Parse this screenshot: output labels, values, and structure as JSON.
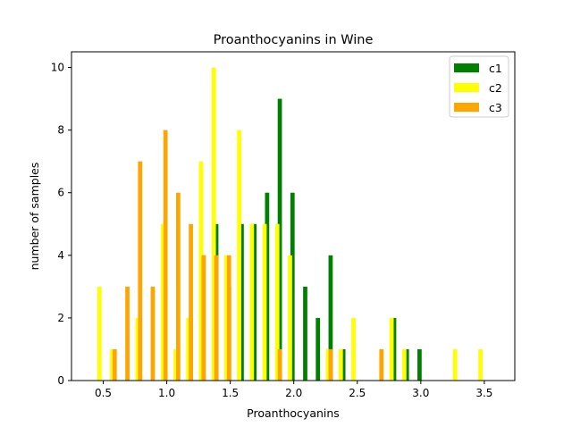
{
  "chart_data": {
    "type": "bar",
    "title": "Proanthocyanins in Wine",
    "xlabel": "Proanthocyanins",
    "ylabel": "number of samples",
    "xlim": [
      0.25,
      3.74
    ],
    "ylim": [
      0,
      10.5
    ],
    "xticks": [
      "0.5",
      "1.0",
      "1.5",
      "2.0",
      "2.5",
      "3.0",
      "3.5"
    ],
    "xtick_values": [
      0.5,
      1.0,
      1.5,
      2.0,
      2.5,
      3.0,
      3.5
    ],
    "yticks": [
      "0",
      "2",
      "4",
      "6",
      "8",
      "10"
    ],
    "ytick_values": [
      0,
      2,
      4,
      6,
      8,
      10
    ],
    "grid": false,
    "legend_position": "top-right",
    "bin_width": 0.1,
    "series": [
      {
        "name": "c1",
        "color": "#008000",
        "x": [
          1.19,
          1.29,
          1.39,
          1.49,
          1.59,
          1.69,
          1.79,
          1.89,
          1.99,
          2.09,
          2.19,
          2.29,
          2.39,
          2.49,
          2.59,
          2.69,
          2.79,
          2.89,
          2.99
        ],
        "values": [
          2,
          4,
          5,
          3,
          5,
          5,
          6,
          9,
          6,
          3,
          2,
          4,
          1,
          0,
          0,
          0,
          2,
          1,
          1
        ]
      },
      {
        "name": "c2",
        "color": "#ffff00",
        "x": [
          0.47,
          0.57,
          0.67,
          0.77,
          0.87,
          0.97,
          1.07,
          1.17,
          1.27,
          1.37,
          1.47,
          1.57,
          1.67,
          1.77,
          1.87,
          1.97,
          2.07,
          2.17,
          2.27,
          2.37,
          2.47,
          2.57,
          2.67,
          2.77,
          2.87,
          2.97,
          3.07,
          3.17,
          3.27,
          3.37,
          3.47
        ],
        "values": [
          3,
          1,
          0,
          2,
          0,
          5,
          1,
          2,
          7,
          10,
          4,
          8,
          5,
          5,
          5,
          4,
          0,
          0,
          1,
          1,
          2,
          0,
          0,
          2,
          1,
          0,
          0,
          0,
          1,
          0,
          1
        ]
      },
      {
        "name": "c3",
        "color": "#ffa500",
        "x": [
          0.59,
          0.69,
          0.79,
          0.89,
          0.99,
          1.09,
          1.19,
          1.29,
          1.39,
          1.49,
          1.59,
          1.69,
          1.79,
          1.89,
          1.99,
          2.09,
          2.19,
          2.29,
          2.39,
          2.49,
          2.59,
          2.69
        ],
        "values": [
          1,
          3,
          7,
          3,
          8,
          6,
          5,
          4,
          4,
          4,
          0,
          0,
          0,
          1,
          0,
          0,
          0,
          1,
          0,
          0,
          0,
          1
        ]
      }
    ]
  }
}
